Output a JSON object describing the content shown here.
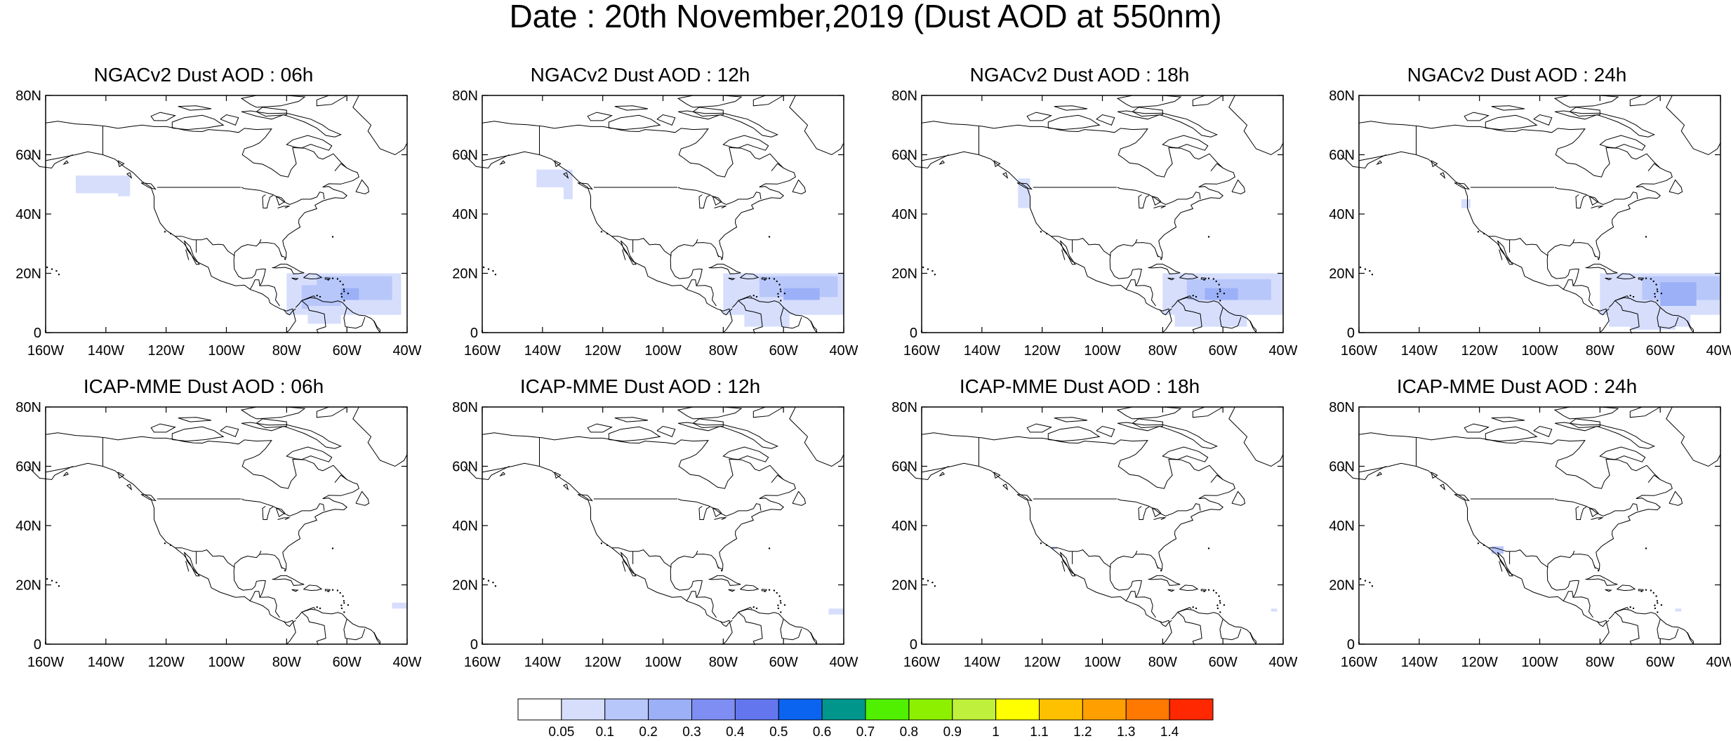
{
  "title": "Date : 20th November,2019 (Dust AOD at 550nm)",
  "lat_ticks": [
    "80N",
    "60N",
    "40N",
    "20N",
    "0"
  ],
  "lon_ticks": [
    "160W",
    "140W",
    "120W",
    "100W",
    "80W",
    "60W",
    "40W"
  ],
  "map_extent": {
    "lon_min": -160,
    "lon_max": -40,
    "lat_min": 0,
    "lat_max": 80
  },
  "panels": [
    {
      "title": "NGACv2 Dust AOD : 06h",
      "row": 0,
      "col": 0
    },
    {
      "title": "NGACv2 Dust AOD : 12h",
      "row": 0,
      "col": 1
    },
    {
      "title": "NGACv2 Dust AOD : 18h",
      "row": 0,
      "col": 2
    },
    {
      "title": "NGACv2 Dust AOD : 24h",
      "row": 0,
      "col": 3
    },
    {
      "title": "ICAP-MME Dust AOD : 06h",
      "row": 1,
      "col": 0
    },
    {
      "title": "ICAP-MME Dust AOD : 12h",
      "row": 1,
      "col": 1
    },
    {
      "title": "ICAP-MME Dust AOD : 18h",
      "row": 1,
      "col": 2
    },
    {
      "title": "ICAP-MME Dust AOD : 24h",
      "row": 1,
      "col": 3
    }
  ],
  "colorbar": {
    "labels": [
      "0.05",
      "0.1",
      "0.2",
      "0.3",
      "0.4",
      "0.5",
      "0.6",
      "0.7",
      "0.8",
      "0.9",
      "1",
      "1.1",
      "1.2",
      "1.3",
      "1.4"
    ],
    "colors": [
      "#ffffff",
      "#d6defc",
      "#b8c7fa",
      "#9bb0f7",
      "#7f8ef2",
      "#6476ee",
      "#0a64f0",
      "#00968c",
      "#50f000",
      "#8cf000",
      "#bef03c",
      "#ffff00",
      "#ffc000",
      "#ffa000",
      "#ff7800",
      "#ff2800"
    ]
  }
}
